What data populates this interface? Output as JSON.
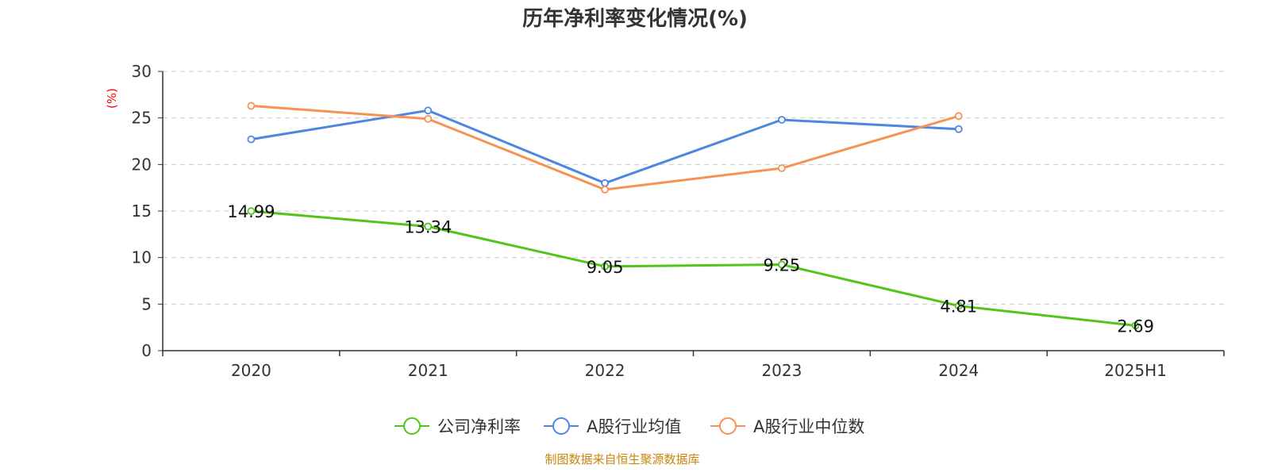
{
  "chart_data": {
    "type": "line",
    "title": "历年净利率变化情况(%)",
    "ylabel": "(%)",
    "xlabel": "",
    "categories": [
      "2020",
      "2021",
      "2022",
      "2023",
      "2024",
      "2025H1"
    ],
    "ylim": [
      0,
      30
    ],
    "yticks": [
      0,
      5,
      10,
      15,
      20,
      25,
      30
    ],
    "grid": true,
    "legend_position": "bottom",
    "series": [
      {
        "name": "公司净利率",
        "color": "#52c41a",
        "values": [
          14.99,
          13.34,
          9.05,
          9.25,
          4.81,
          2.69
        ],
        "labels": [
          "14.99",
          "13.34",
          "9.05",
          "9.25",
          "4.81",
          "2.69"
        ],
        "show_labels": true
      },
      {
        "name": "A股行业均值",
        "color": "#4e86e0",
        "values": [
          22.7,
          25.8,
          18.0,
          24.8,
          23.8,
          null
        ],
        "show_labels": false
      },
      {
        "name": "A股行业中位数",
        "color": "#f79256",
        "values": [
          26.3,
          24.9,
          17.3,
          19.6,
          25.2,
          null
        ],
        "show_labels": false
      }
    ],
    "source": "制图数据来自恒生聚源数据库"
  }
}
